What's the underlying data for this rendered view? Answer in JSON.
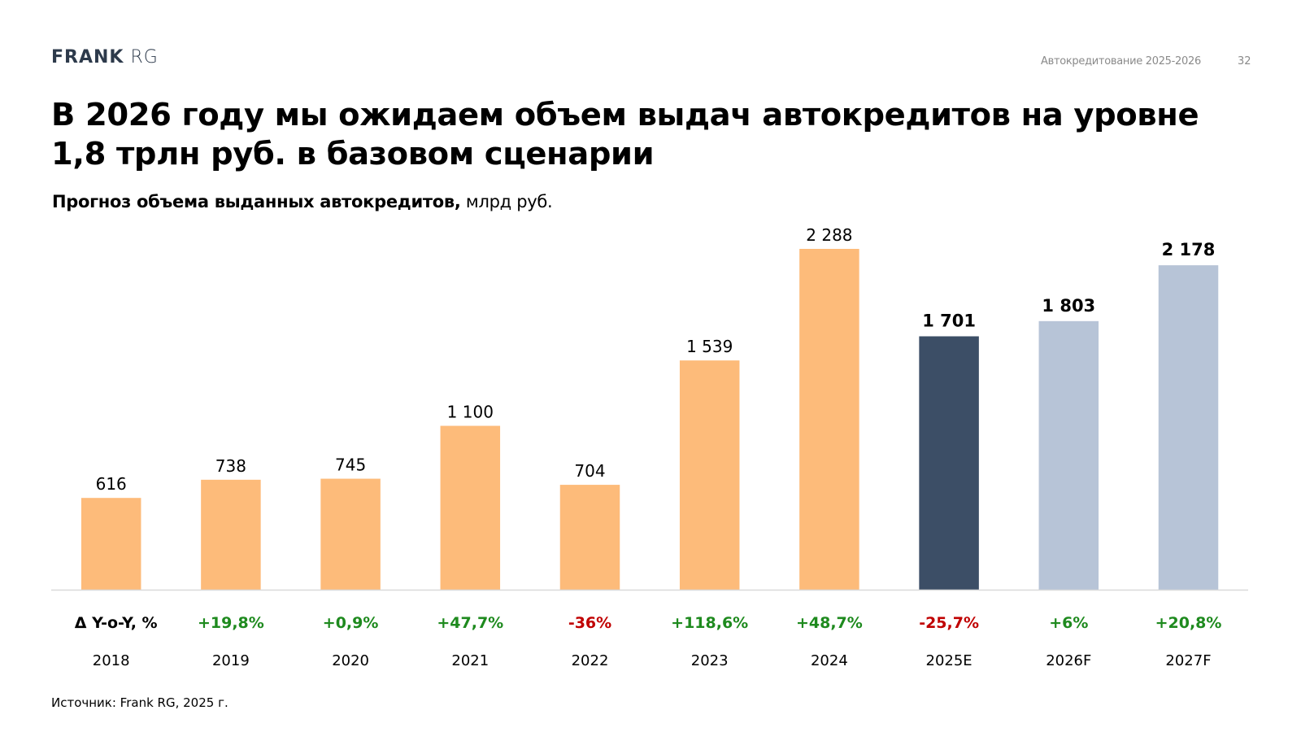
{
  "header": {
    "logo": {
      "bold": "FRANK",
      "light": "RG"
    },
    "deck_title": "Автокредитование 2025-2026",
    "page_number": "32"
  },
  "title": "В 2026 году мы ожидаем объем выдач автокредитов на уровне 1,8 трлн руб. в базовом сценарии",
  "subtitle": {
    "bold": "Прогноз объема выданных автокредитов,",
    "unit": "млрд руб."
  },
  "source": "Источник: Frank RG, 2025 г.",
  "chart_data": {
    "type": "bar",
    "categories": [
      "2018",
      "2019",
      "2020",
      "2021",
      "2022",
      "2023",
      "2024",
      "2025E",
      "2026F",
      "2027F"
    ],
    "values": [
      616,
      738,
      745,
      1100,
      704,
      1539,
      2288,
      1701,
      1803,
      2178
    ],
    "value_labels": [
      "616",
      "738",
      "745",
      "1 100",
      "704",
      "1 539",
      "2 288",
      "1 701",
      "1 803",
      "2 178"
    ],
    "bar_colors": [
      "#FDBB7A",
      "#FDBB7A",
      "#FDBB7A",
      "#FDBB7A",
      "#FDBB7A",
      "#FDBB7A",
      "#FDBB7A",
      "#3C4E66",
      "#B7C4D7",
      "#B7C4D7"
    ],
    "bold_value_labels": [
      false,
      false,
      false,
      false,
      false,
      false,
      false,
      true,
      true,
      true
    ],
    "yoy_header": "Δ Y-o-Y, %",
    "yoy": [
      "+19,8%",
      "+0,9%",
      "+47,7%",
      "-36%",
      "+118,6%",
      "+48,7%",
      "-25,7%",
      "+6%",
      "+20,8%"
    ],
    "colors": {
      "positive": "#1E8A1E",
      "negative": "#C00000",
      "axis": "#d9d9d9"
    },
    "ylim": [
      0,
      2288
    ],
    "grid": false,
    "legend": "none"
  }
}
